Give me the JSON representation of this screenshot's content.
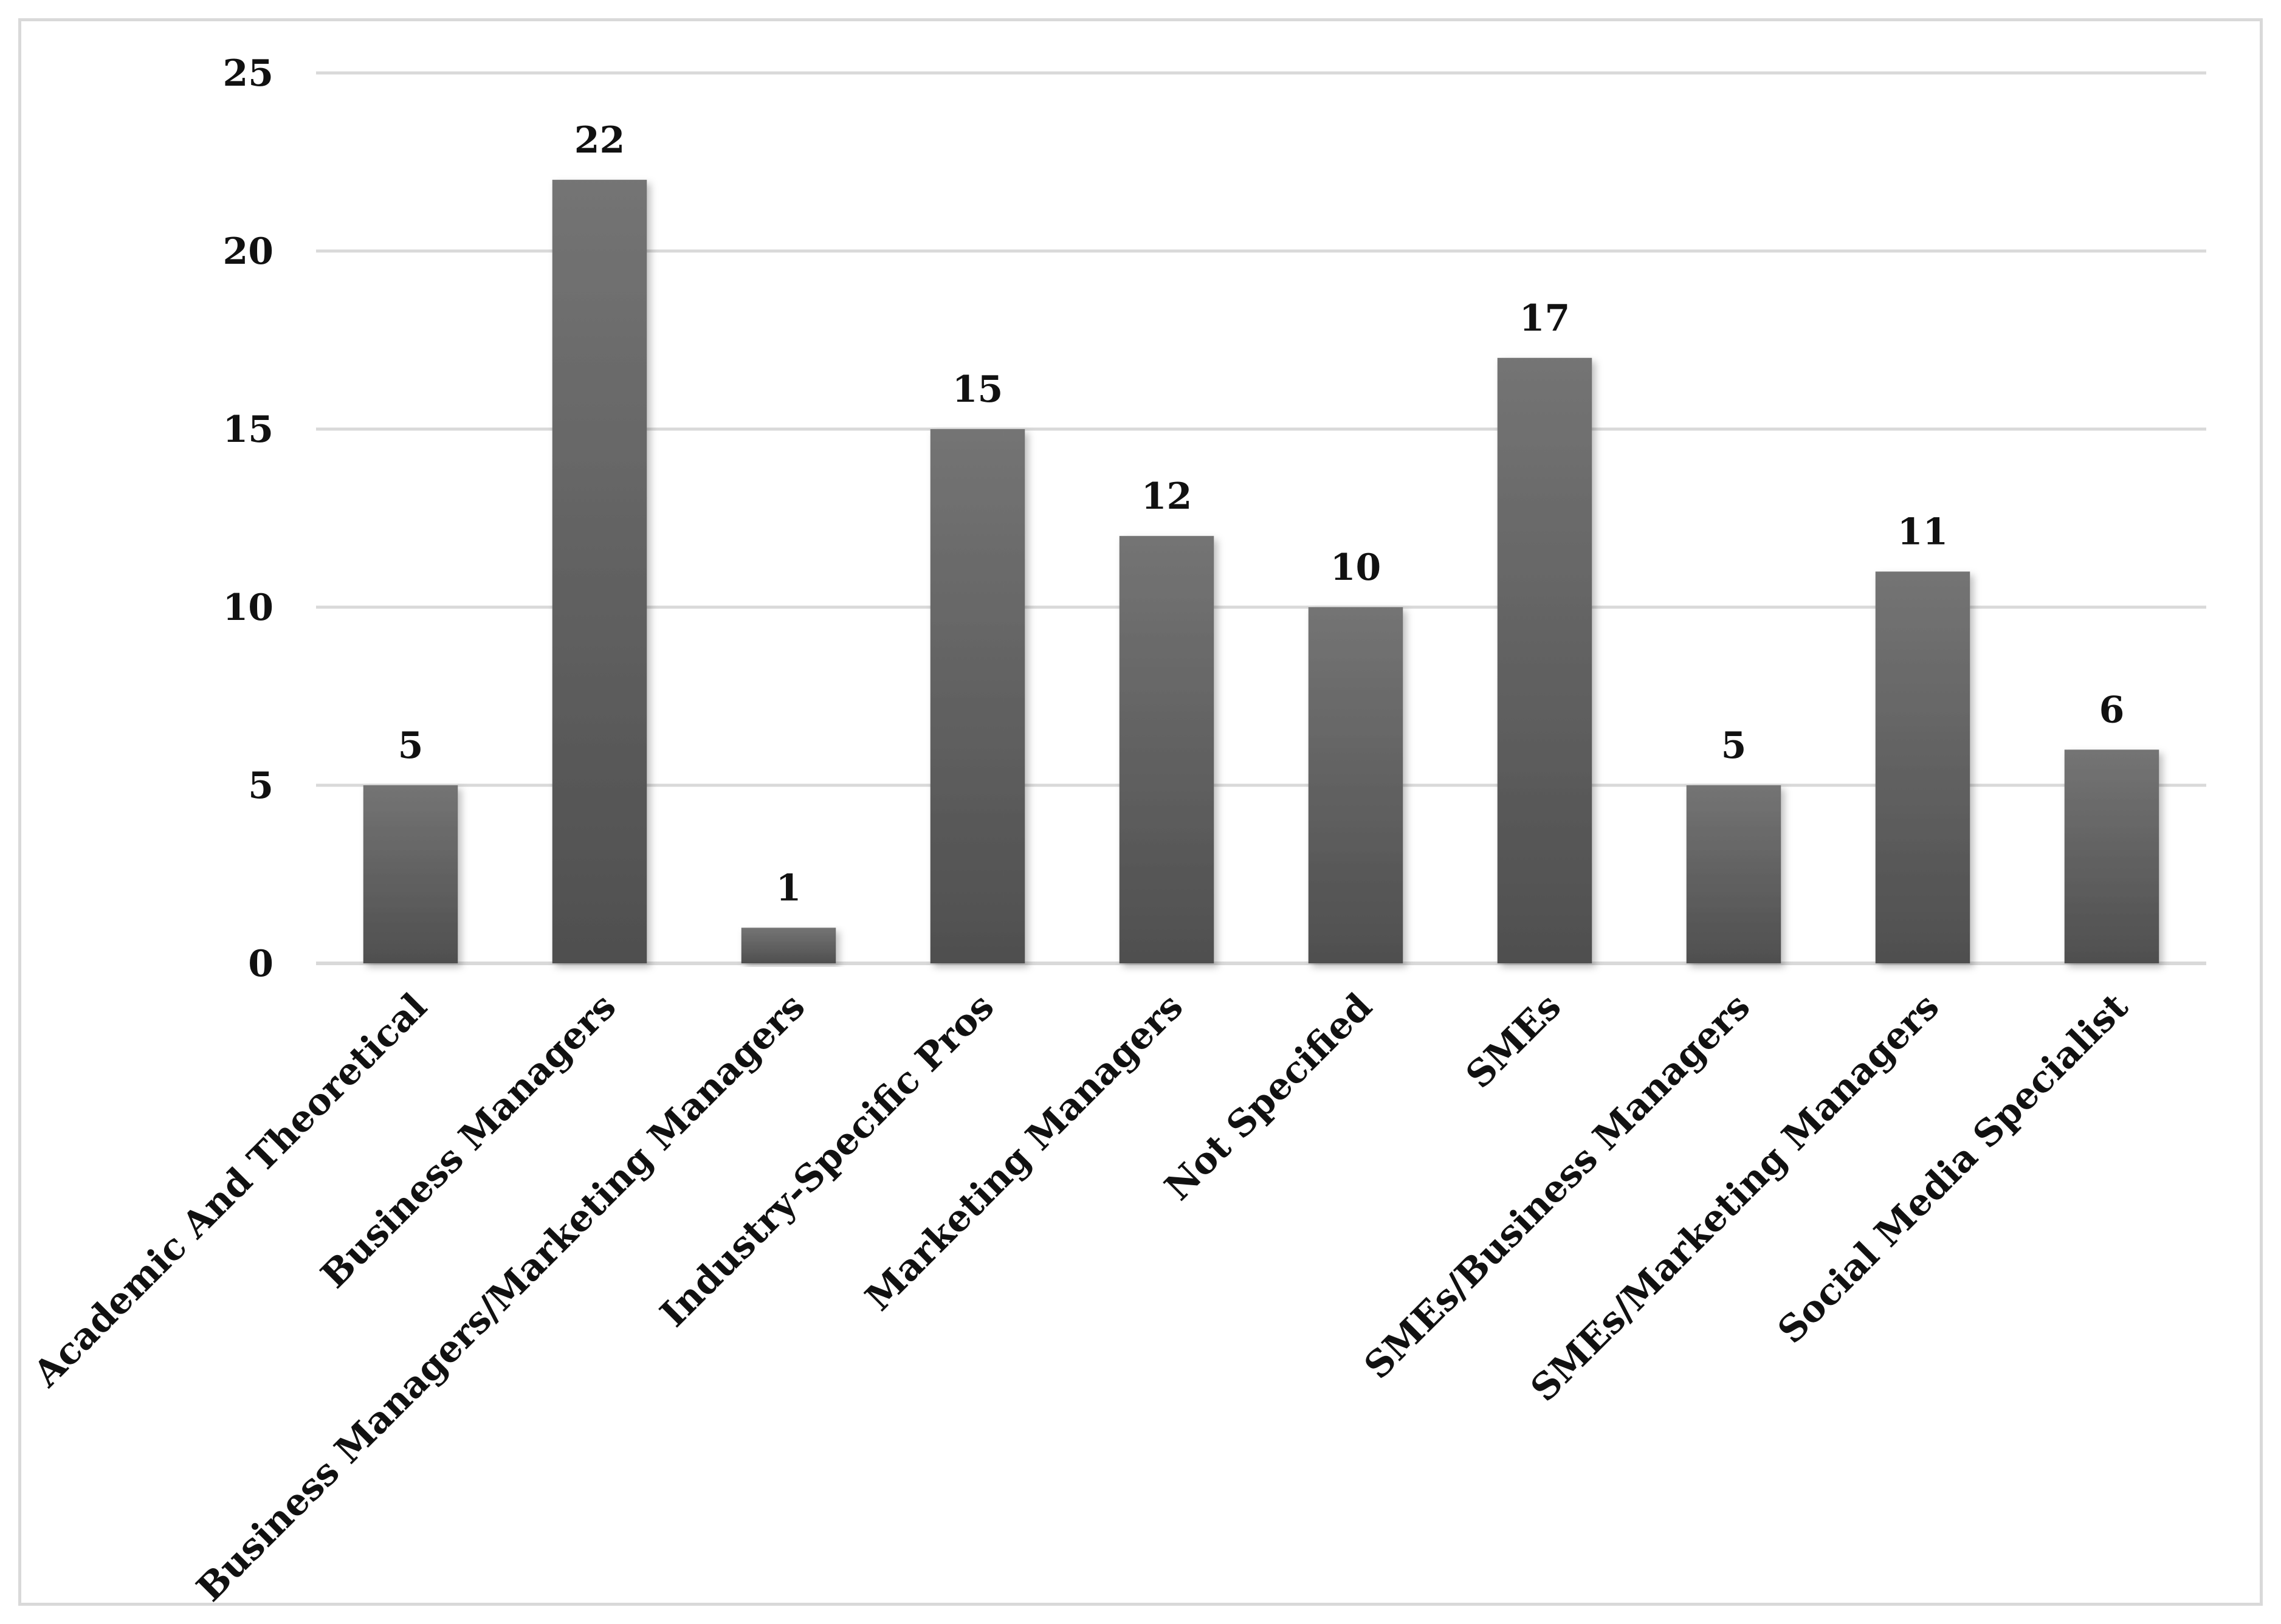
{
  "chart_data": {
    "type": "bar",
    "title": "",
    "xlabel": "",
    "ylabel": "",
    "categories": [
      "Academic And Theoretical",
      "Business Managers",
      "Business Managers/Marketing Managers",
      "Industry-Specific Pros",
      "Marketing Managers",
      "Not Specified",
      "SMEs",
      "SMEs/Business Managers",
      "SMEs/Marketing Managers",
      "Social Media Specialist"
    ],
    "values": [
      5,
      22,
      1,
      15,
      12,
      10,
      17,
      5,
      11,
      6
    ],
    "ylim": [
      0,
      25
    ],
    "yticks": [
      0,
      5,
      10,
      15,
      20,
      25
    ],
    "grid": true,
    "legend": "none",
    "bar_color": "#5f5f5f",
    "data_labels": true
  }
}
